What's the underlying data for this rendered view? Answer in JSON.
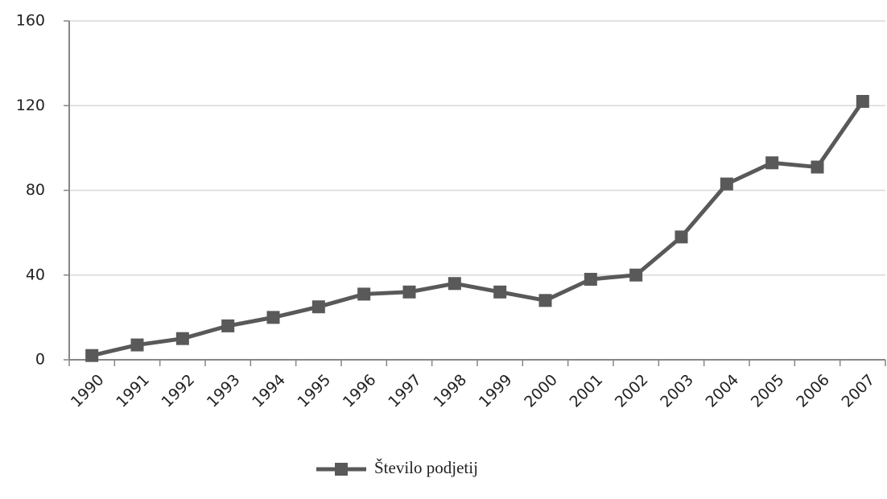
{
  "chart_data": {
    "type": "line",
    "categories": [
      "1990",
      "1991",
      "1992",
      "1993",
      "1994",
      "1995",
      "1996",
      "1997",
      "1998",
      "1999",
      "2000",
      "2001",
      "2002",
      "2003",
      "2004",
      "2005",
      "2006",
      "2007"
    ],
    "series": [
      {
        "name": "Število podjetij",
        "color": "#595959",
        "values": [
          2,
          7,
          10,
          16,
          20,
          25,
          31,
          32,
          36,
          32,
          28,
          38,
          40,
          58,
          83,
          93,
          91,
          122
        ]
      }
    ],
    "ylim": [
      0,
      160
    ],
    "yticks": [
      0,
      40,
      80,
      120,
      160
    ],
    "grid": true,
    "legend": "bottom"
  }
}
